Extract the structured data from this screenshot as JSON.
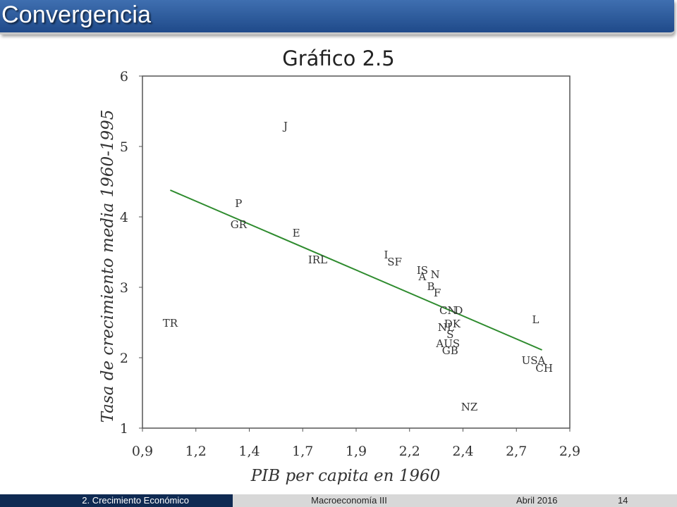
{
  "header": {
    "title": "Convergencia"
  },
  "subtitle": "Gráfico 2.5",
  "footer": {
    "section": "2. Crecimiento Económico",
    "course": "Macroeconomía III",
    "date": "Abril 2016",
    "page": "14"
  },
  "colors": {
    "title_bar": "#2a5a9e",
    "footer_dark": "#0f2a52",
    "footer_light": "#d8d8d8",
    "trend_line": "#2e8b2e"
  },
  "chart_data": {
    "type": "scatter",
    "title": "",
    "xlabel": "PIB per capita en 1960",
    "ylabel": "Tasa de crecimiento media 1960-1995",
    "xlim": [
      0.9,
      2.9
    ],
    "ylim": [
      1,
      6
    ],
    "xticks": [
      "0,9",
      "1,2",
      "1,4",
      "1,7",
      "1,9",
      "2,2",
      "2,4",
      "2,7",
      "2,9"
    ],
    "yticks": [
      "1",
      "2",
      "3",
      "4",
      "5",
      "6"
    ],
    "grid": false,
    "points": [
      {
        "label": "J",
        "x": 1.57,
        "y": 5.3
      },
      {
        "label": "P",
        "x": 1.35,
        "y": 4.2
      },
      {
        "label": "GR",
        "x": 1.35,
        "y": 3.9
      },
      {
        "label": "E",
        "x": 1.62,
        "y": 3.78
      },
      {
        "label": "IRL",
        "x": 1.72,
        "y": 3.4
      },
      {
        "label": "I",
        "x": 2.04,
        "y": 3.47
      },
      {
        "label": "SF",
        "x": 2.08,
        "y": 3.37
      },
      {
        "label": "IS",
        "x": 2.21,
        "y": 3.25
      },
      {
        "label": "N",
        "x": 2.27,
        "y": 3.19
      },
      {
        "label": "A",
        "x": 2.21,
        "y": 3.16
      },
      {
        "label": "B",
        "x": 2.25,
        "y": 3.02
      },
      {
        "label": "F",
        "x": 2.28,
        "y": 2.93
      },
      {
        "label": "CN",
        "x": 2.33,
        "y": 2.68
      },
      {
        "label": "D",
        "x": 2.38,
        "y": 2.68
      },
      {
        "label": "L",
        "x": 2.74,
        "y": 2.55
      },
      {
        "label": "DK",
        "x": 2.35,
        "y": 2.49
      },
      {
        "label": "NL",
        "x": 2.32,
        "y": 2.44
      },
      {
        "label": "S",
        "x": 2.34,
        "y": 2.34
      },
      {
        "label": "AUS",
        "x": 2.33,
        "y": 2.21
      },
      {
        "label": "GB",
        "x": 2.34,
        "y": 2.11
      },
      {
        "label": "USA",
        "x": 2.73,
        "y": 1.97
      },
      {
        "label": "CH",
        "x": 2.78,
        "y": 1.86
      },
      {
        "label": "TR",
        "x": 1.03,
        "y": 2.5
      },
      {
        "label": "NZ",
        "x": 2.43,
        "y": 1.31
      }
    ],
    "trend_line": {
      "x": [
        1.03,
        2.77
      ],
      "y": [
        4.38,
        2.11
      ]
    }
  }
}
